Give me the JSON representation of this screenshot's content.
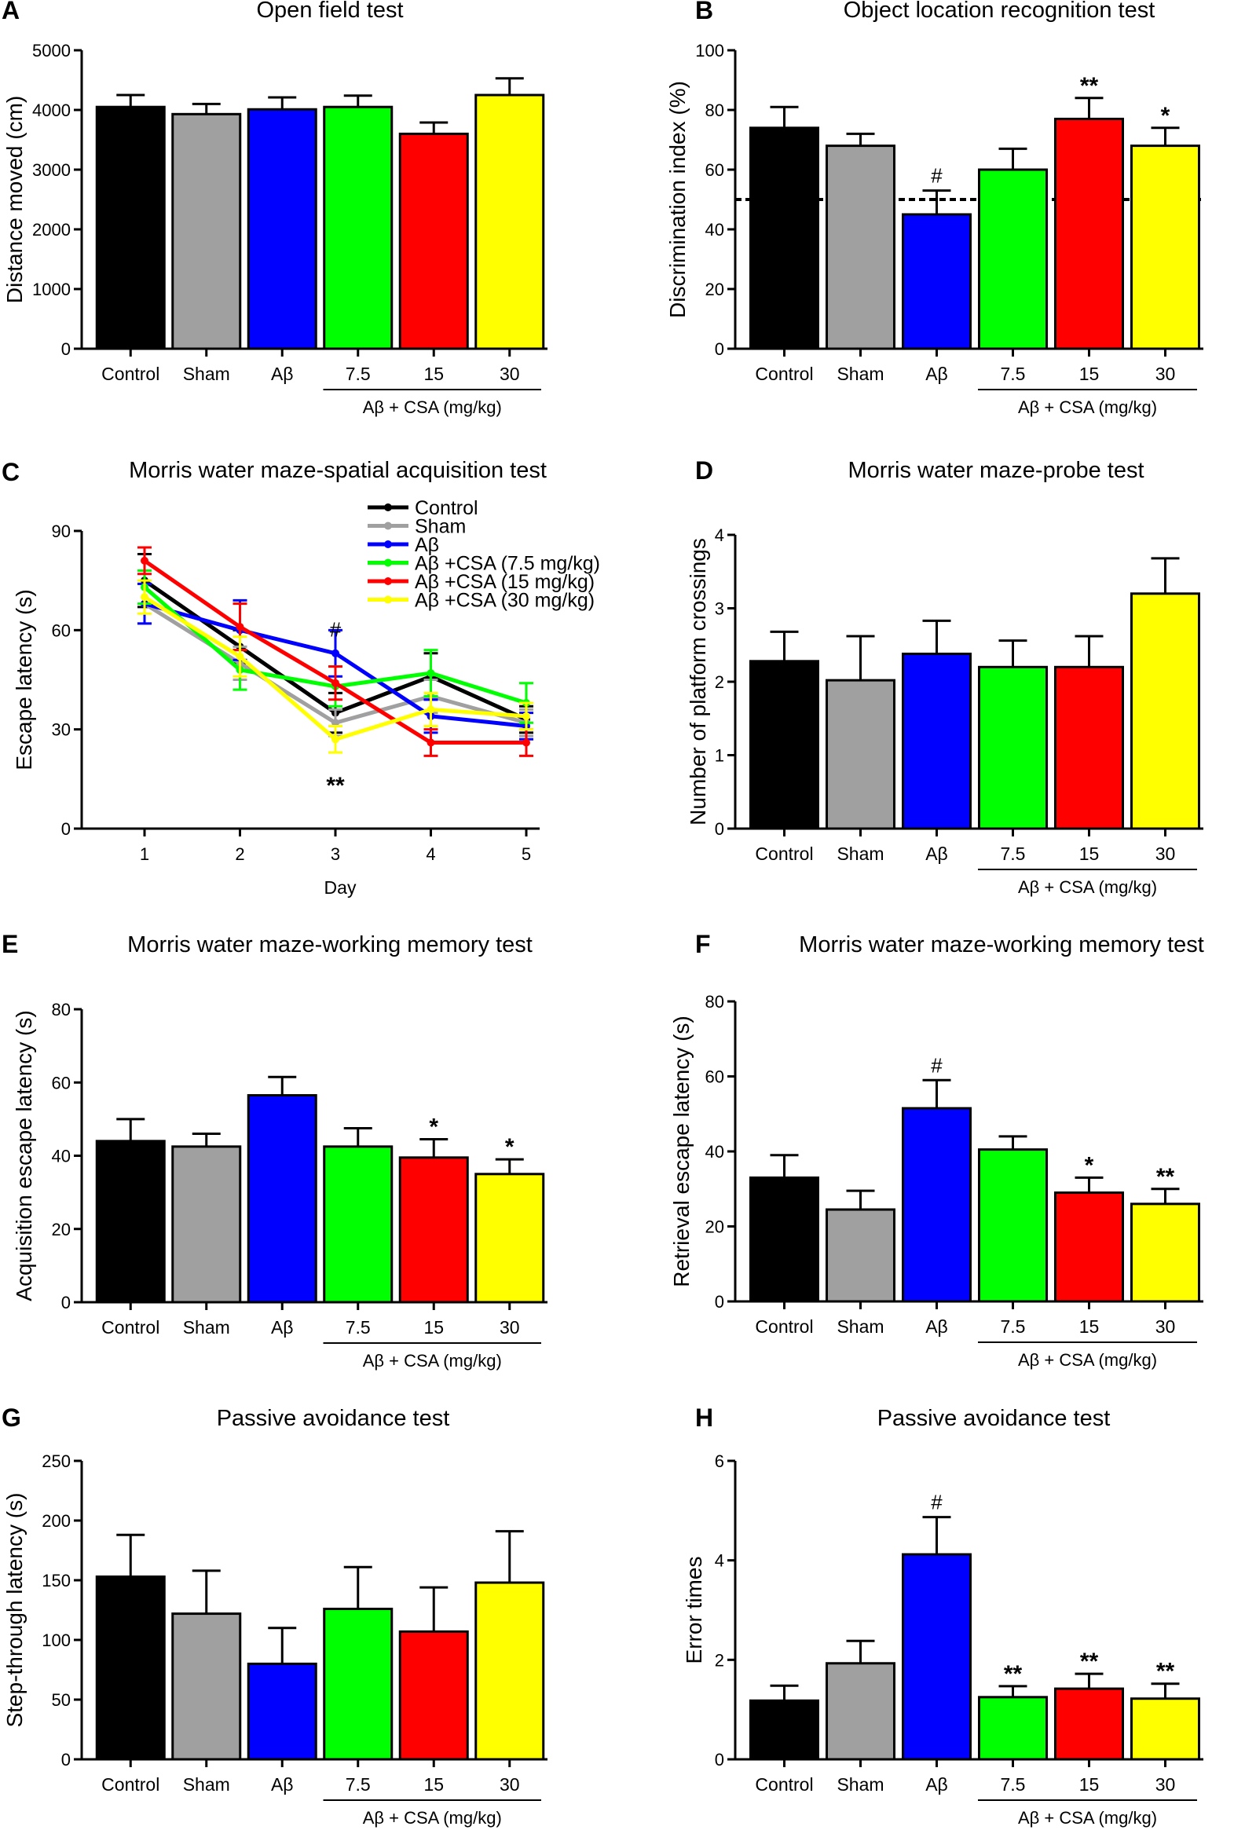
{
  "colors": {
    "Control": "#000000",
    "Sham": "#a0a0a0",
    "Aβ": "#0000ff",
    "7.5": "#00ff00",
    "15": "#ff0000",
    "30": "#ffff00"
  },
  "chart_data": [
    {
      "id": "A",
      "type": "bar",
      "title": "Open field test",
      "ylabel": "Distance moved (cm)",
      "xlabel": "",
      "ylim": [
        0,
        5000
      ],
      "yticks": [
        0,
        1000,
        2000,
        3000,
        4000,
        5000
      ],
      "categories": [
        "Control",
        "Sham",
        "Aβ",
        "7.5",
        "15",
        "30"
      ],
      "values": [
        4050,
        3930,
        4010,
        4050,
        3600,
        4250
      ],
      "errors": [
        200,
        170,
        200,
        190,
        190,
        280
      ],
      "annotations": [
        "",
        "",
        "",
        "",
        "",
        ""
      ],
      "group_label": "Aβ + CSA (mg/kg)"
    },
    {
      "id": "B",
      "type": "bar",
      "title": "Object location recognition test",
      "ylabel": "Discrimination index (%)",
      "xlabel": "",
      "ylim": [
        0,
        100
      ],
      "yticks": [
        0,
        20,
        40,
        60,
        80,
        100
      ],
      "categories": [
        "Control",
        "Sham",
        "Aβ",
        "7.5",
        "15",
        "30"
      ],
      "values": [
        74,
        68,
        45,
        60,
        77,
        68
      ],
      "errors": [
        7,
        4,
        8,
        7,
        7,
        6
      ],
      "annotations": [
        "",
        "",
        "#",
        "",
        "**",
        "*"
      ],
      "reference_line": 50,
      "group_label": "Aβ + CSA (mg/kg)"
    },
    {
      "id": "C",
      "type": "line",
      "title": "Morris water maze-spatial acquisition test",
      "ylabel": "Escape latency (s)",
      "xlabel": "Day",
      "ylim": [
        0,
        90
      ],
      "yticks": [
        0,
        30,
        60,
        90
      ],
      "x": [
        1,
        2,
        3,
        4,
        5
      ],
      "series": [
        {
          "name": "Control",
          "legend": "Control",
          "color": "#000000",
          "values": [
            75,
            55,
            35,
            46,
            33
          ],
          "errors": [
            8,
            5,
            6,
            7,
            4
          ]
        },
        {
          "name": "Sham",
          "legend": "Sham",
          "color": "#a0a0a0",
          "values": [
            68,
            50,
            32,
            40,
            32
          ],
          "errors": [
            6,
            5,
            4,
            5,
            4
          ]
        },
        {
          "name": "Aβ",
          "legend": "Aβ",
          "color": "#0000ff",
          "values": [
            68,
            60,
            53,
            34,
            31
          ],
          "errors": [
            6,
            9,
            7,
            5,
            4
          ]
        },
        {
          "name": "7.5",
          "legend": "Aβ +CSA (7.5 mg/kg)",
          "color": "#00ff00",
          "values": [
            73,
            48,
            43,
            47,
            38
          ],
          "errors": [
            5,
            6,
            6,
            7,
            6
          ]
        },
        {
          "name": "15",
          "legend": "Aβ +CSA (15 mg/kg)",
          "color": "#ff0000",
          "values": [
            81,
            61,
            44,
            26,
            26
          ],
          "errors": [
            4,
            7,
            5,
            4,
            4
          ]
        },
        {
          "name": "30",
          "legend": "Aβ +CSA (30 mg/kg)",
          "color": "#ffff00",
          "values": [
            70,
            52,
            27,
            36,
            34
          ],
          "errors": [
            5,
            6,
            4,
            5,
            4
          ]
        }
      ],
      "annotations": [
        {
          "x": 3,
          "text": "#",
          "position": "above"
        },
        {
          "x": 3,
          "text": "**",
          "position": "below"
        }
      ]
    },
    {
      "id": "D",
      "type": "bar",
      "title": "Morris water maze-probe test",
      "ylabel": "Number of platform crossings",
      "xlabel": "",
      "ylim": [
        0,
        4
      ],
      "yticks": [
        0,
        1,
        2,
        3,
        4
      ],
      "categories": [
        "Control",
        "Sham",
        "Aβ",
        "7.5",
        "15",
        "30"
      ],
      "values": [
        2.28,
        2.02,
        2.38,
        2.2,
        2.2,
        3.2
      ],
      "errors": [
        0.4,
        0.6,
        0.45,
        0.36,
        0.42,
        0.48
      ],
      "annotations": [
        "",
        "",
        "",
        "",
        "",
        ""
      ],
      "group_label": "Aβ + CSA (mg/kg)"
    },
    {
      "id": "E",
      "type": "bar",
      "title": "Morris water maze-working memory test",
      "ylabel": "Acquisition escape latency (s)",
      "xlabel": "",
      "ylim": [
        0,
        80
      ],
      "yticks": [
        0,
        20,
        40,
        60,
        80
      ],
      "categories": [
        "Control",
        "Sham",
        "Aβ",
        "7.5",
        "15",
        "30"
      ],
      "values": [
        44,
        42.5,
        56.5,
        42.5,
        39.5,
        35
      ],
      "errors": [
        6,
        3.5,
        5,
        5,
        5,
        4
      ],
      "annotations": [
        "",
        "",
        "",
        "",
        "*",
        "*"
      ],
      "group_label": "Aβ + CSA (mg/kg)"
    },
    {
      "id": "F",
      "type": "bar",
      "title": "Morris water maze-working memory test",
      "ylabel": "Retrieval escape latency (s)",
      "xlabel": "",
      "ylim": [
        0,
        80
      ],
      "yticks": [
        0,
        20,
        40,
        60,
        80
      ],
      "categories": [
        "Control",
        "Sham",
        "Aβ",
        "7.5",
        "15",
        "30"
      ],
      "values": [
        33,
        24.5,
        51.5,
        40.5,
        29,
        26
      ],
      "errors": [
        6,
        5,
        7.5,
        3.5,
        4,
        4
      ],
      "annotations": [
        "",
        "",
        "#",
        "",
        "*",
        "**"
      ],
      "group_label": "Aβ + CSA (mg/kg)"
    },
    {
      "id": "G",
      "type": "bar",
      "title": "Passive avoidance test",
      "ylabel": "Step-through latency (s)",
      "xlabel": "",
      "ylim": [
        0,
        250
      ],
      "yticks": [
        0,
        50,
        100,
        150,
        200,
        250
      ],
      "categories": [
        "Control",
        "Sham",
        "Aβ",
        "7.5",
        "15",
        "30"
      ],
      "values": [
        153,
        122,
        80,
        126,
        107,
        148
      ],
      "errors": [
        35,
        36,
        30,
        35,
        37,
        43
      ],
      "annotations": [
        "",
        "",
        "",
        "",
        "",
        ""
      ],
      "group_label": "Aβ + CSA (mg/kg)"
    },
    {
      "id": "H",
      "type": "bar",
      "title": "Passive avoidance test",
      "ylabel": "Error times",
      "xlabel": "",
      "ylim": [
        0,
        6
      ],
      "yticks": [
        0,
        2,
        4,
        6
      ],
      "categories": [
        "Control",
        "Sham",
        "Aβ",
        "7.5",
        "15",
        "30"
      ],
      "values": [
        1.18,
        1.93,
        4.12,
        1.25,
        1.42,
        1.22
      ],
      "errors": [
        0.3,
        0.45,
        0.75,
        0.22,
        0.3,
        0.3
      ],
      "annotations": [
        "",
        "",
        "#",
        "**",
        "**",
        "**"
      ],
      "group_label": "Aβ + CSA (mg/kg)"
    }
  ]
}
